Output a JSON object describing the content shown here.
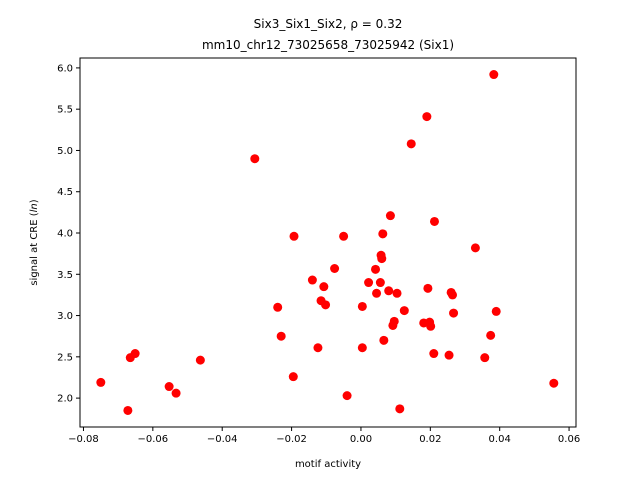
{
  "chart_data": {
    "type": "scatter",
    "title_line1": "Six3_Six1_Six2, ρ = 0.32",
    "title_line2": "mm10_chr12_73025658_73025942 (Six1)",
    "xlabel": "motif activity",
    "ylabel": "signal at CRE (ln)",
    "xlim": [
      -0.081,
      0.062
    ],
    "ylim": [
      1.65,
      6.12
    ],
    "xticks": [
      -0.08,
      -0.06,
      -0.04,
      -0.02,
      0.0,
      0.02,
      0.04,
      0.06
    ],
    "xtick_labels": [
      "−0.08",
      "−0.06",
      "−0.04",
      "−0.02",
      "0.00",
      "0.02",
      "0.04",
      "0.06"
    ],
    "yticks": [
      2.0,
      2.5,
      3.0,
      3.5,
      4.0,
      4.5,
      5.0,
      5.5,
      6.0
    ],
    "ytick_labels": [
      "2.0",
      "2.5",
      "3.0",
      "3.5",
      "4.0",
      "4.5",
      "5.0",
      "5.5",
      "6.0"
    ],
    "grid": false,
    "marker_color": "#ff0000",
    "points": [
      [
        -0.075,
        2.19
      ],
      [
        -0.0672,
        1.85
      ],
      [
        -0.0665,
        2.49
      ],
      [
        -0.0651,
        2.54
      ],
      [
        -0.0553,
        2.14
      ],
      [
        -0.0533,
        2.06
      ],
      [
        -0.0463,
        2.46
      ],
      [
        -0.0306,
        4.9
      ],
      [
        -0.024,
        3.1
      ],
      [
        -0.023,
        2.75
      ],
      [
        -0.0195,
        2.26
      ],
      [
        -0.0193,
        3.96
      ],
      [
        -0.014,
        3.43
      ],
      [
        -0.0124,
        2.61
      ],
      [
        -0.0115,
        3.18
      ],
      [
        -0.0107,
        3.35
      ],
      [
        -0.0102,
        3.13
      ],
      [
        -0.0076,
        3.57
      ],
      [
        -0.005,
        3.96
      ],
      [
        -0.004,
        2.03
      ],
      [
        0.0004,
        3.11
      ],
      [
        0.0004,
        2.61
      ],
      [
        0.0022,
        3.4
      ],
      [
        0.0042,
        3.56
      ],
      [
        0.0045,
        3.27
      ],
      [
        0.0056,
        3.4
      ],
      [
        0.0058,
        3.73
      ],
      [
        0.006,
        3.69
      ],
      [
        0.0063,
        3.99
      ],
      [
        0.0066,
        2.7
      ],
      [
        0.008,
        3.3
      ],
      [
        0.0085,
        4.21
      ],
      [
        0.0092,
        2.88
      ],
      [
        0.0096,
        2.93
      ],
      [
        0.0104,
        3.27
      ],
      [
        0.0112,
        1.87
      ],
      [
        0.0125,
        3.06
      ],
      [
        0.0145,
        5.08
      ],
      [
        0.0181,
        2.91
      ],
      [
        0.019,
        5.41
      ],
      [
        0.0193,
        3.33
      ],
      [
        0.0198,
        2.92
      ],
      [
        0.0201,
        2.87
      ],
      [
        0.021,
        2.54
      ],
      [
        0.0212,
        4.14
      ],
      [
        0.0254,
        2.52
      ],
      [
        0.026,
        3.28
      ],
      [
        0.0264,
        3.25
      ],
      [
        0.0267,
        3.03
      ],
      [
        0.033,
        3.82
      ],
      [
        0.0357,
        2.49
      ],
      [
        0.0374,
        2.76
      ],
      [
        0.0383,
        5.92
      ],
      [
        0.039,
        3.05
      ],
      [
        0.0556,
        2.18
      ]
    ]
  }
}
